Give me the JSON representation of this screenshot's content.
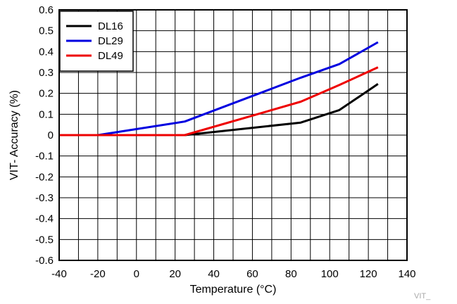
{
  "chart_data": {
    "type": "line",
    "title": "",
    "xlabel": "Temperature (°C)",
    "ylabel": "VIT- Accuracy (%)",
    "xlim": [
      -40,
      140
    ],
    "ylim": [
      -0.6,
      0.6
    ],
    "xticks": [
      -40,
      -20,
      0,
      20,
      40,
      60,
      80,
      100,
      120,
      140
    ],
    "yticks": [
      0.6,
      0.5,
      0.4,
      0.3,
      0.2,
      0.1,
      0,
      -0.1,
      -0.2,
      -0.3,
      -0.4,
      -0.5,
      -0.6
    ],
    "xtick_labels": [
      "-40",
      "-20",
      "0",
      "20",
      "40",
      "60",
      "80",
      "100",
      "120",
      "140"
    ],
    "ytick_labels": [
      "0.6",
      "0.5",
      "0.4",
      "0.3",
      "0.2",
      "0.1",
      "0",
      "-0.1",
      "-0.2",
      "-0.3",
      "-0.4",
      "-0.5",
      "-0.6"
    ],
    "grid": true,
    "legend_position": "top-left",
    "series": [
      {
        "name": "DL16",
        "color": "#000000",
        "x": [
          -40,
          -20,
          25,
          85,
          105,
          125
        ],
        "y": [
          0,
          0,
          0,
          0.06,
          0.12,
          0.245
        ]
      },
      {
        "name": "DL29",
        "color": "#0000e0",
        "x": [
          -40,
          -20,
          25,
          85,
          105,
          125
        ],
        "y": [
          0,
          0,
          0.065,
          0.275,
          0.34,
          0.445
        ]
      },
      {
        "name": "DL49",
        "color": "#ee0000",
        "x": [
          -40,
          -20,
          25,
          85,
          105,
          125
        ],
        "y": [
          0,
          0,
          0,
          0.16,
          0.24,
          0.325
        ]
      }
    ],
    "watermark": "VIT_"
  }
}
